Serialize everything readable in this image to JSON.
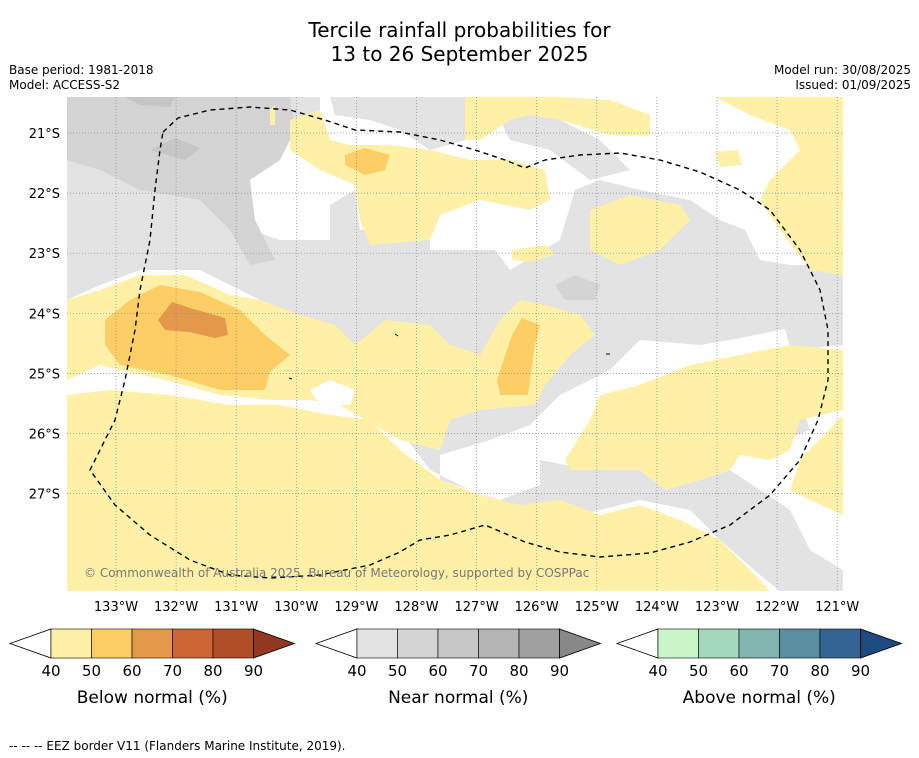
{
  "title_line1": "Tercile rainfall probabilities for",
  "title_line2": "13 to 26 September 2025",
  "base_period": "Base period: 1981-2018",
  "model": "Model: ACCESS-S2",
  "model_run": "Model run: 30/08/2025",
  "issued": "Issued: 01/09/2025",
  "copyright": "© Commonwealth of Australia 2025, Bureau of Meteorology, supported by COSPPac",
  "lon_labels": [
    "133°W",
    "132°W",
    "131°W",
    "130°W",
    "129°W",
    "128°W",
    "127°W",
    "126°W",
    "125°W",
    "124°W",
    "123°W",
    "122°W",
    "121°W"
  ],
  "lat_labels": [
    "21°S",
    "22°S",
    "23°S",
    "24°S",
    "25°S",
    "26°S",
    "27°S"
  ],
  "colorbars": [
    {
      "title": "Below normal (%)",
      "ticks": [
        "40",
        "50",
        "60",
        "70",
        "80",
        "90"
      ],
      "colors": [
        "#fff0a8",
        "#fece66",
        "#e3984a",
        "#cc6634",
        "#b04e28",
        "#903820"
      ]
    },
    {
      "title": "Near normal (%)",
      "ticks": [
        "40",
        "50",
        "60",
        "70",
        "80",
        "90"
      ],
      "colors": [
        "#e3e3e3",
        "#d4d4d4",
        "#c6c6c6",
        "#b4b4b4",
        "#a0a0a0",
        "#888888"
      ]
    },
    {
      "title": "Above normal (%)",
      "ticks": [
        "40",
        "50",
        "60",
        "70",
        "80",
        "90"
      ],
      "colors": [
        "#caf5c8",
        "#a4d8bc",
        "#82b4b0",
        "#5a8ea0",
        "#346492",
        "#1e4a82"
      ]
    }
  ],
  "footnote": "--  --  -- EEZ border V11 (Flanders Marine Institute, 2019)."
}
